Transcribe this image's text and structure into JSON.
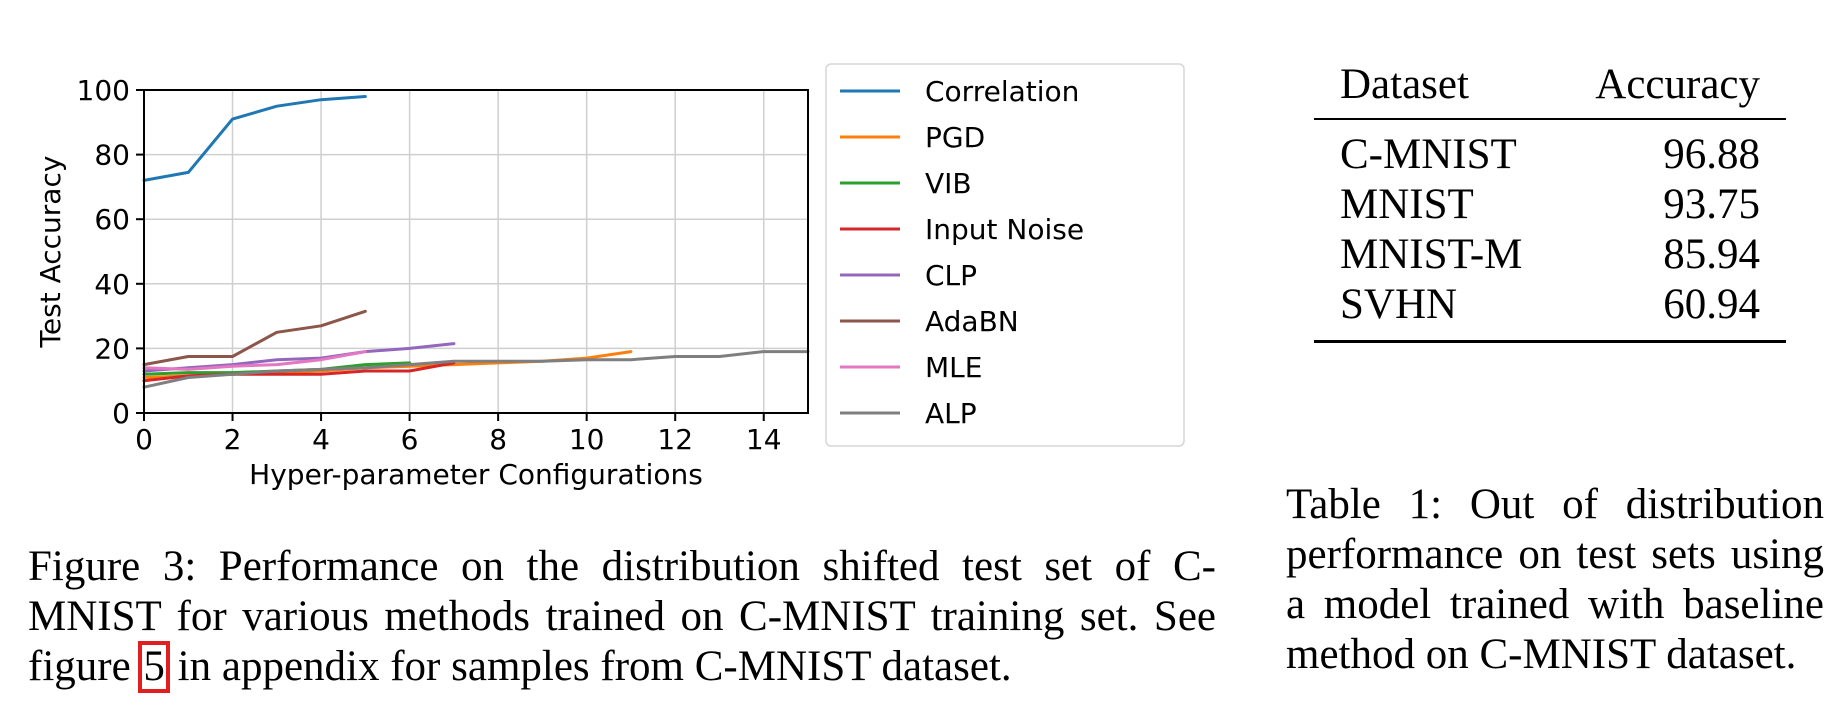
{
  "chart_data": {
    "type": "line",
    "title": "",
    "xlabel": "Hyper-parameter Configurations",
    "ylabel": "Test Accuracy",
    "xlim": [
      0,
      15
    ],
    "ylim": [
      0,
      100
    ],
    "xticks": [
      0,
      2,
      4,
      6,
      8,
      10,
      12,
      14
    ],
    "yticks": [
      0,
      20,
      40,
      60,
      80,
      100
    ],
    "grid": true,
    "legend_position": "outside-right",
    "series": [
      {
        "name": "Correlation",
        "color": "#1f77b4",
        "x": [
          0,
          1,
          2,
          3,
          4,
          5
        ],
        "y": [
          72,
          74.5,
          91,
          95,
          97,
          98
        ]
      },
      {
        "name": "PGD",
        "color": "#ff7f0e",
        "x": [
          0,
          1,
          2,
          3,
          4,
          5,
          6,
          7,
          8,
          9,
          10,
          11
        ],
        "y": [
          11,
          11.5,
          12,
          12.5,
          13,
          14,
          14.5,
          15,
          15.5,
          16,
          17,
          19
        ]
      },
      {
        "name": "VIB",
        "color": "#2ca02c",
        "x": [
          0,
          1,
          2,
          3,
          4,
          5,
          6
        ],
        "y": [
          12,
          12.5,
          12.5,
          13,
          13.5,
          15,
          15.5
        ]
      },
      {
        "name": "Input Noise",
        "color": "#d62728",
        "x": [
          0,
          1,
          2,
          3,
          4,
          5,
          6,
          7
        ],
        "y": [
          10,
          11.5,
          12,
          12,
          12,
          13,
          13,
          15.5
        ]
      },
      {
        "name": "CLP",
        "color": "#9467bd",
        "x": [
          0,
          1,
          2,
          3,
          4,
          5,
          6,
          7
        ],
        "y": [
          13,
          14,
          15,
          16.5,
          17,
          19,
          20,
          21.5
        ]
      },
      {
        "name": "AdaBN",
        "color": "#8c564b",
        "x": [
          0,
          1,
          2,
          3,
          4,
          5
        ],
        "y": [
          15,
          17.5,
          17.5,
          25,
          27,
          31.5
        ]
      },
      {
        "name": "MLE",
        "color": "#e377c2",
        "x": [
          0,
          1,
          2,
          3,
          4,
          5
        ],
        "y": [
          14,
          13.5,
          14.5,
          15,
          16.5,
          19
        ]
      },
      {
        "name": "ALP",
        "color": "#7f7f7f",
        "x": [
          0,
          1,
          2,
          3,
          4,
          5,
          6,
          7,
          8,
          9,
          10,
          11,
          12,
          13,
          14,
          15
        ],
        "y": [
          8,
          11,
          12,
          13,
          13.5,
          14,
          15,
          16,
          16,
          16,
          16.5,
          16.5,
          17.5,
          17.5,
          19,
          19
        ]
      }
    ]
  },
  "figure_caption": {
    "before": "Figure 3: Performance on the distribution shifted test set of C-MNIST for various methods trained on C-MNIST training set. See figure ",
    "ref": "5",
    "after": " in appendix for samples from C-MNIST dataset."
  },
  "table": {
    "headers": [
      "Dataset",
      "Accuracy"
    ],
    "rows": [
      [
        "C-MNIST",
        "96.88"
      ],
      [
        "MNIST",
        "93.75"
      ],
      [
        "MNIST-M",
        "85.94"
      ],
      [
        "SVHN",
        "60.94"
      ]
    ]
  },
  "table_caption": "Table 1: Out of distribution performance on test sets using a model trained with baseline method on C-MNIST dataset."
}
